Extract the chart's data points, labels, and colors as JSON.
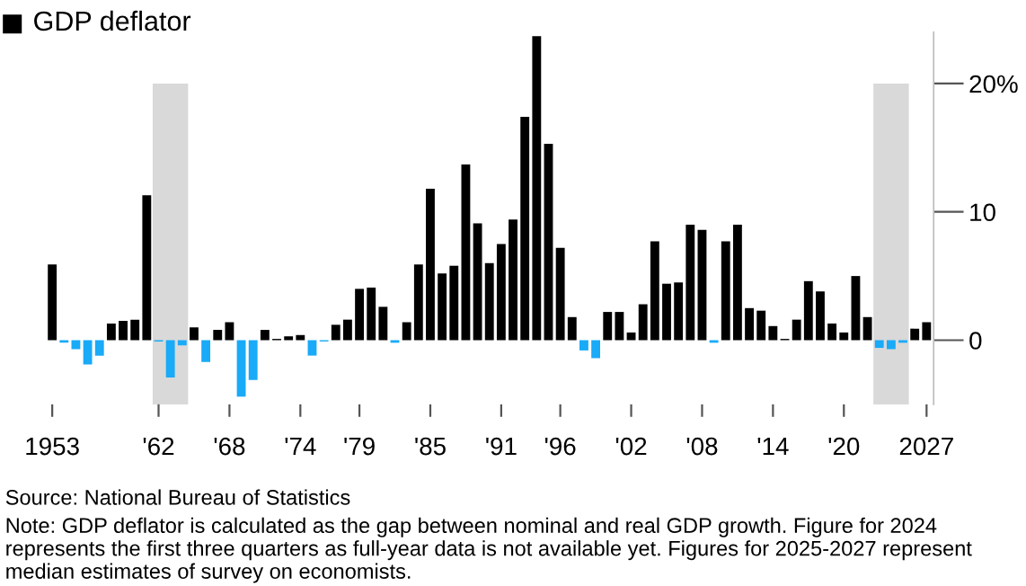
{
  "chart_data": {
    "type": "bar",
    "title": "GDP deflator",
    "x": [
      1953,
      1954,
      1955,
      1956,
      1957,
      1958,
      1959,
      1960,
      1961,
      1962,
      1963,
      1964,
      1965,
      1966,
      1967,
      1968,
      1969,
      1970,
      1971,
      1972,
      1973,
      1974,
      1975,
      1976,
      1977,
      1978,
      1979,
      1980,
      1981,
      1982,
      1983,
      1984,
      1985,
      1986,
      1987,
      1988,
      1989,
      1990,
      1991,
      1992,
      1993,
      1994,
      1995,
      1996,
      1997,
      1998,
      1999,
      2000,
      2001,
      2002,
      2003,
      2004,
      2005,
      2006,
      2007,
      2008,
      2009,
      2010,
      2011,
      2012,
      2013,
      2014,
      2015,
      2016,
      2017,
      2018,
      2019,
      2020,
      2021,
      2022,
      2023,
      2024,
      2025,
      2026,
      2027
    ],
    "values": [
      5.9,
      -0.2,
      -0.7,
      -1.9,
      -1.2,
      1.3,
      1.5,
      1.6,
      11.3,
      -0.1,
      -2.9,
      -0.4,
      1.0,
      -1.7,
      0.8,
      1.4,
      -4.4,
      -3.1,
      0.8,
      0.1,
      0.3,
      0.4,
      -1.2,
      -0.1,
      1.2,
      1.6,
      4.0,
      4.1,
      2.6,
      -0.2,
      1.4,
      5.9,
      11.8,
      5.2,
      5.8,
      13.7,
      9.1,
      6.0,
      7.5,
      9.4,
      17.4,
      23.7,
      15.3,
      7.2,
      1.8,
      -0.8,
      -1.4,
      2.2,
      2.2,
      0.6,
      2.8,
      7.7,
      4.4,
      4.5,
      9.0,
      8.6,
      -0.2,
      7.7,
      9.0,
      2.5,
      2.3,
      1.1,
      0.1,
      1.6,
      4.6,
      3.8,
      1.3,
      0.6,
      5.0,
      1.8,
      -0.6,
      -0.7,
      -0.2,
      0.9,
      1.4
    ],
    "colors": [
      "#000000",
      "#19aaf8",
      "#19aaf8",
      "#19aaf8",
      "#19aaf8",
      "#000000",
      "#000000",
      "#000000",
      "#000000",
      "#19aaf8",
      "#19aaf8",
      "#19aaf8",
      "#000000",
      "#19aaf8",
      "#000000",
      "#000000",
      "#19aaf8",
      "#19aaf8",
      "#000000",
      "#000000",
      "#000000",
      "#000000",
      "#19aaf8",
      "#19aaf8",
      "#000000",
      "#000000",
      "#000000",
      "#000000",
      "#000000",
      "#19aaf8",
      "#000000",
      "#000000",
      "#000000",
      "#000000",
      "#000000",
      "#000000",
      "#000000",
      "#000000",
      "#000000",
      "#000000",
      "#000000",
      "#000000",
      "#000000",
      "#000000",
      "#000000",
      "#19aaf8",
      "#19aaf8",
      "#000000",
      "#000000",
      "#000000",
      "#000000",
      "#000000",
      "#000000",
      "#000000",
      "#000000",
      "#000000",
      "#19aaf8",
      "#000000",
      "#000000",
      "#000000",
      "#000000",
      "#000000",
      "#000000",
      "#000000",
      "#000000",
      "#000000",
      "#000000",
      "#000000",
      "#000000",
      "#000000",
      "#19aaf8",
      "#19aaf8",
      "#19aaf8",
      "#000000",
      "#000000"
    ],
    "xlim": [
      1952.4,
      2027.6
    ],
    "xticks": [
      {
        "value": 1953,
        "label": "1953"
      },
      {
        "value": 1962,
        "label": "'62"
      },
      {
        "value": 1968,
        "label": "'68"
      },
      {
        "value": 1974,
        "label": "'74"
      },
      {
        "value": 1979,
        "label": "'79"
      },
      {
        "value": 1985,
        "label": "'85"
      },
      {
        "value": 1991,
        "label": "'91"
      },
      {
        "value": 1996,
        "label": "'96"
      },
      {
        "value": 2002,
        "label": "'02"
      },
      {
        "value": 2008,
        "label": "'08"
      },
      {
        "value": 2014,
        "label": "'14"
      },
      {
        "value": 2020,
        "label": "'20"
      },
      {
        "value": 2027,
        "label": "2027"
      }
    ],
    "ylim": [
      -5,
      24
    ],
    "yticks": [
      0,
      10,
      {
        "value": 20,
        "label": "20%"
      }
    ],
    "bands": [
      {
        "axis": "x",
        "from": 1961.5,
        "to": 1964.5,
        "color": "#d9d9d9"
      },
      {
        "axis": "x",
        "from": 2022.5,
        "to": 2025.5,
        "color": "#d9d9d9"
      }
    ],
    "grid": false,
    "annotations": [
      "Source: National Bureau of Statistics",
      "Note: GDP deflator is calculated as the gap between nominal and real GDP growth. Figure for 2024 represents the first three quarters as full-year data is not available yet. Figures for 2025-2027 represent median estimates of survey on economists."
    ]
  }
}
